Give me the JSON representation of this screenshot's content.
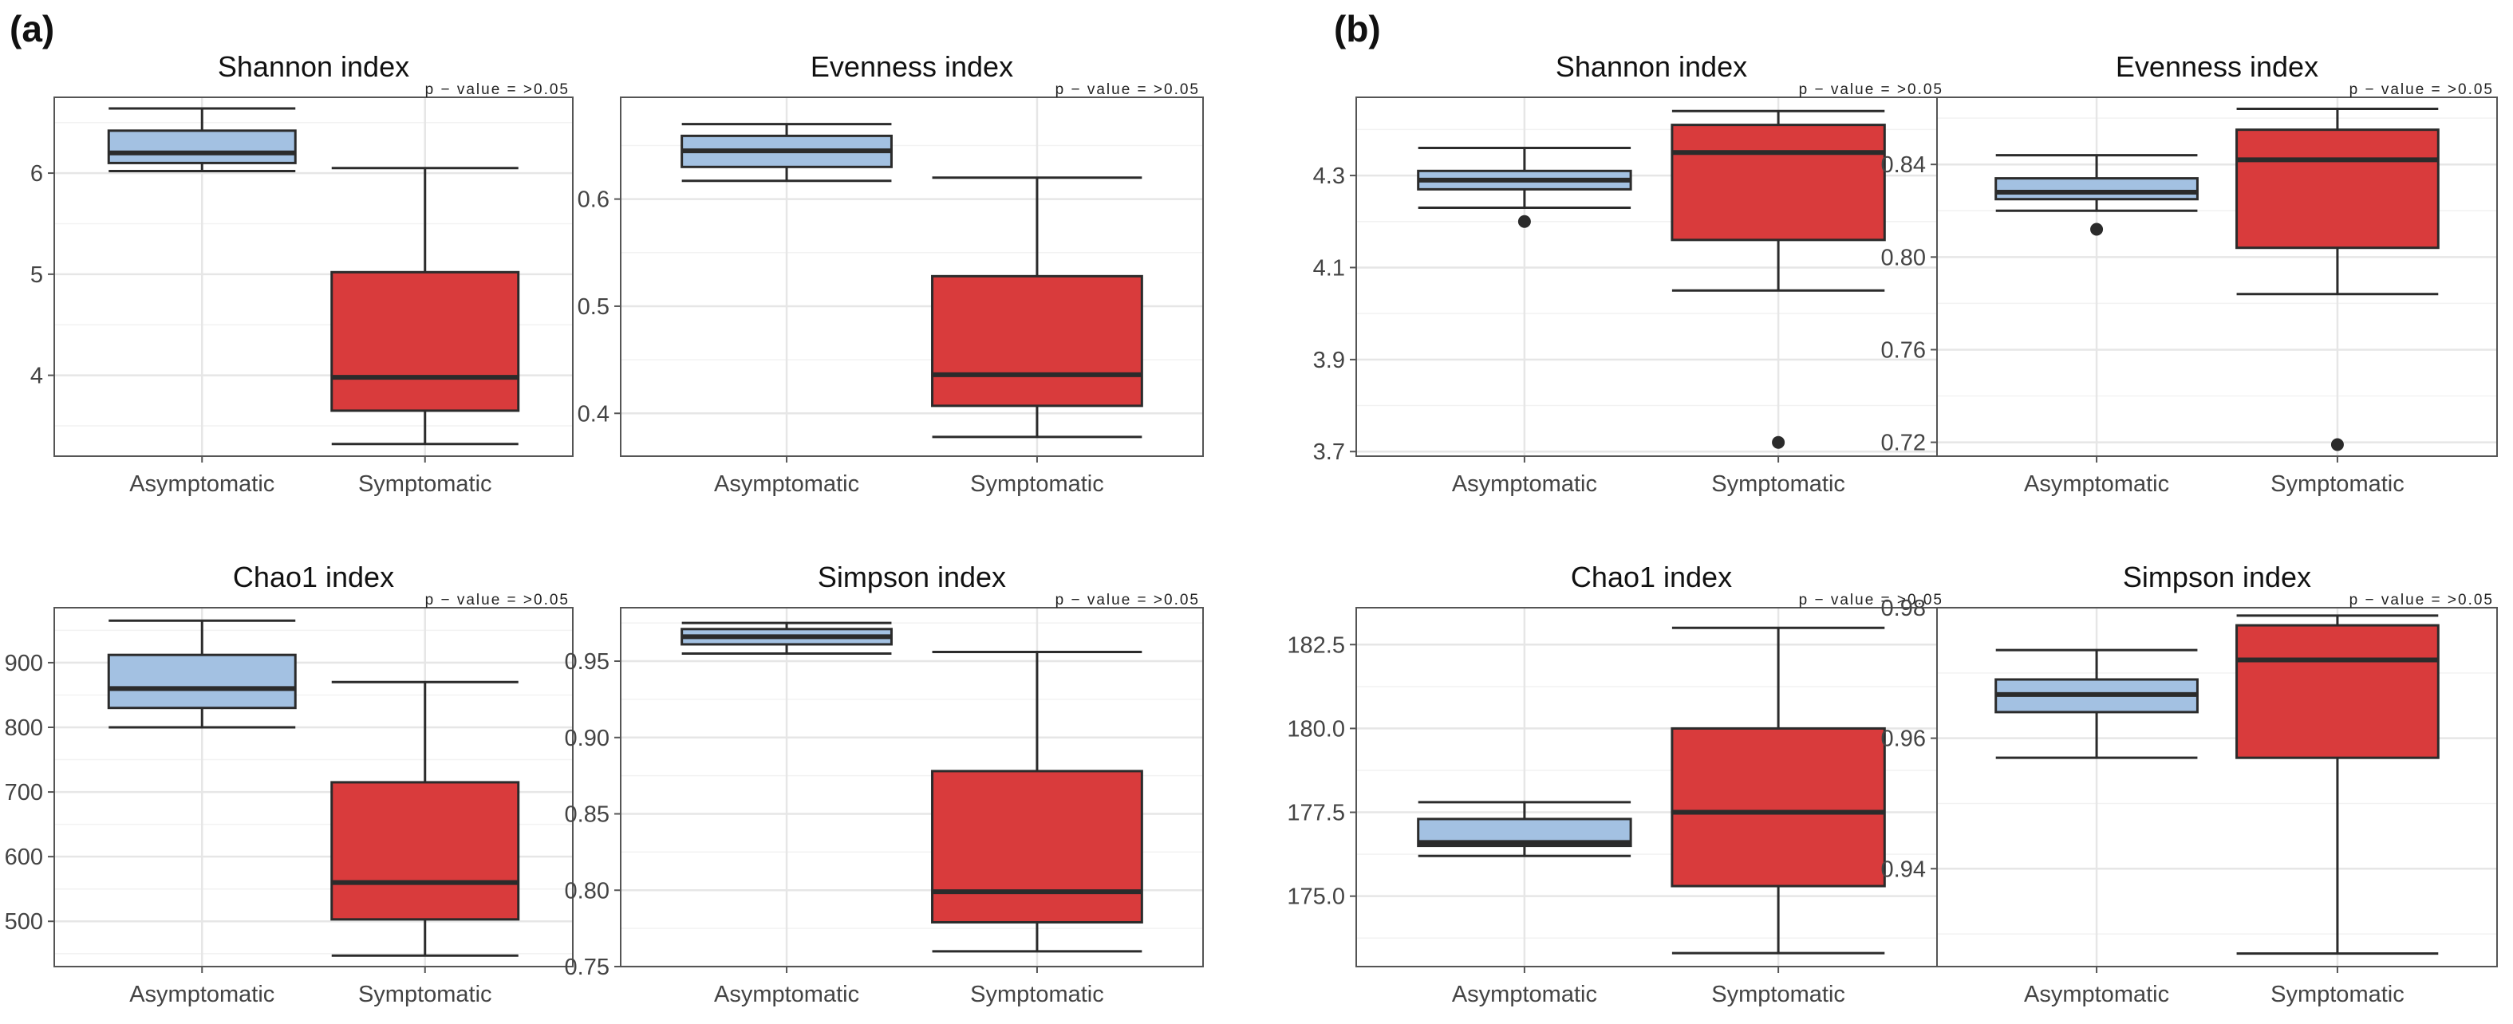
{
  "panel_labels": [
    "(a)",
    "(b)"
  ],
  "colors": {
    "asymptomatic_fill": "#a3c1e2",
    "symptomatic_fill": "#d93b3c",
    "outline": "#2b2b2b",
    "grid_major": "#e6e6e6",
    "grid_minor": "#f2f2f2",
    "panel_border": "#555555"
  },
  "chart_data": [
    {
      "type": "box",
      "panel": "(a)",
      "title": "Shannon index",
      "annotation": "p − value = >0.05",
      "categories": [
        "Asymptomatic",
        "Symptomatic"
      ],
      "ylim": [
        3.2,
        6.75
      ],
      "yticks": [
        4,
        5,
        6
      ],
      "ytick_labels": [
        "4",
        "5",
        "6"
      ],
      "boxes": [
        {
          "group": "Asymptomatic",
          "min": 6.02,
          "q1": 6.1,
          "median": 6.2,
          "q3": 6.42,
          "max": 6.64,
          "outliers": []
        },
        {
          "group": "Symptomatic",
          "min": 3.32,
          "q1": 3.65,
          "median": 3.98,
          "q3": 5.02,
          "max": 6.05,
          "outliers": []
        }
      ]
    },
    {
      "type": "box",
      "panel": "(a)",
      "title": "Evenness index",
      "annotation": "p − value = >0.05",
      "categories": [
        "Asymptomatic",
        "Symptomatic"
      ],
      "ylim": [
        0.36,
        0.695
      ],
      "yticks": [
        0.4,
        0.5,
        0.6
      ],
      "ytick_labels": [
        "0.4",
        "0.5",
        "0.6"
      ],
      "boxes": [
        {
          "group": "Asymptomatic",
          "min": 0.617,
          "q1": 0.63,
          "median": 0.645,
          "q3": 0.659,
          "max": 0.67,
          "outliers": []
        },
        {
          "group": "Symptomatic",
          "min": 0.378,
          "q1": 0.407,
          "median": 0.436,
          "q3": 0.528,
          "max": 0.62,
          "outliers": []
        }
      ]
    },
    {
      "type": "box",
      "panel": "(b)",
      "title": "Shannon index",
      "annotation": "p − value = >0.05",
      "categories": [
        "Asymptomatic",
        "Symptomatic"
      ],
      "ylim": [
        3.69,
        4.47
      ],
      "yticks": [
        3.7,
        3.9,
        4.1,
        4.3
      ],
      "ytick_labels": [
        "3.7",
        "3.9",
        "4.1",
        "4.3"
      ],
      "boxes": [
        {
          "group": "Asymptomatic",
          "min": 4.23,
          "q1": 4.27,
          "median": 4.29,
          "q3": 4.31,
          "max": 4.36,
          "outliers": [
            4.2
          ]
        },
        {
          "group": "Symptomatic",
          "min": 4.05,
          "q1": 4.16,
          "median": 4.35,
          "q3": 4.41,
          "max": 4.44,
          "outliers": [
            3.72
          ]
        }
      ]
    },
    {
      "type": "box",
      "panel": "(b)",
      "title": "Evenness index",
      "annotation": "p − value = >0.05",
      "categories": [
        "Asymptomatic",
        "Symptomatic"
      ],
      "ylim": [
        0.714,
        0.869
      ],
      "yticks": [
        0.72,
        0.76,
        0.8,
        0.84
      ],
      "ytick_labels": [
        "0.72",
        "0.76",
        "0.80",
        "0.84"
      ],
      "boxes": [
        {
          "group": "Asymptomatic",
          "min": 0.82,
          "q1": 0.825,
          "median": 0.828,
          "q3": 0.834,
          "max": 0.844,
          "outliers": [
            0.812
          ]
        },
        {
          "group": "Symptomatic",
          "min": 0.784,
          "q1": 0.804,
          "median": 0.842,
          "q3": 0.855,
          "max": 0.864,
          "outliers": [
            0.719
          ]
        }
      ]
    },
    {
      "type": "box",
      "panel": "(a)",
      "title": "Chao1 index",
      "annotation": "p − value = >0.05",
      "categories": [
        "Asymptomatic",
        "Symptomatic"
      ],
      "ylim": [
        430,
        985
      ],
      "yticks": [
        500,
        600,
        700,
        800,
        900
      ],
      "ytick_labels": [
        "500",
        "600",
        "700",
        "800",
        "900"
      ],
      "boxes": [
        {
          "group": "Asymptomatic",
          "min": 800,
          "q1": 830,
          "median": 860,
          "q3": 912,
          "max": 965,
          "outliers": []
        },
        {
          "group": "Symptomatic",
          "min": 447,
          "q1": 503,
          "median": 560,
          "q3": 715,
          "max": 870,
          "outliers": []
        }
      ]
    },
    {
      "type": "box",
      "panel": "(a)",
      "title": "Simpson index",
      "annotation": "p − value = >0.05",
      "categories": [
        "Asymptomatic",
        "Symptomatic"
      ],
      "ylim": [
        0.75,
        0.985
      ],
      "yticks": [
        0.75,
        0.8,
        0.85,
        0.9,
        0.95
      ],
      "ytick_labels": [
        "0.75",
        "0.80",
        "0.85",
        "0.90",
        "0.95"
      ],
      "boxes": [
        {
          "group": "Asymptomatic",
          "min": 0.955,
          "q1": 0.961,
          "median": 0.966,
          "q3": 0.971,
          "max": 0.975,
          "outliers": []
        },
        {
          "group": "Symptomatic",
          "min": 0.76,
          "q1": 0.779,
          "median": 0.799,
          "q3": 0.878,
          "max": 0.956,
          "outliers": []
        }
      ]
    },
    {
      "type": "box",
      "panel": "(b)",
      "title": "Chao1 index",
      "annotation": "p − value = >0.05",
      "categories": [
        "Asymptomatic",
        "Symptomatic"
      ],
      "ylim": [
        172.9,
        183.6
      ],
      "yticks": [
        175,
        177.5,
        180,
        182.5
      ],
      "ytick_labels": [
        "175.0",
        "177.5",
        "180.0",
        "182.5"
      ],
      "boxes": [
        {
          "group": "Asymptomatic",
          "min": 176.2,
          "q1": 176.5,
          "median": 176.6,
          "q3": 177.3,
          "max": 177.8,
          "outliers": []
        },
        {
          "group": "Symptomatic",
          "min": 173.3,
          "q1": 175.3,
          "median": 177.5,
          "q3": 180,
          "max": 183,
          "outliers": []
        }
      ]
    },
    {
      "type": "box",
      "panel": "(b)",
      "title": "Simpson index",
      "annotation": "p − value = >0.05",
      "categories": [
        "Asymptomatic",
        "Symptomatic"
      ],
      "ylim": [
        0.925,
        0.98
      ],
      "yticks": [
        0.94,
        0.96,
        0.98
      ],
      "ytick_labels": [
        "0.94",
        "0.96",
        "0.98"
      ],
      "boxes": [
        {
          "group": "Asymptomatic",
          "min": 0.957,
          "q1": 0.964,
          "median": 0.9667,
          "q3": 0.969,
          "max": 0.9735,
          "outliers": []
        },
        {
          "group": "Symptomatic",
          "min": 0.927,
          "q1": 0.957,
          "median": 0.972,
          "q3": 0.9773,
          "max": 0.9788,
          "outliers": []
        }
      ]
    }
  ]
}
